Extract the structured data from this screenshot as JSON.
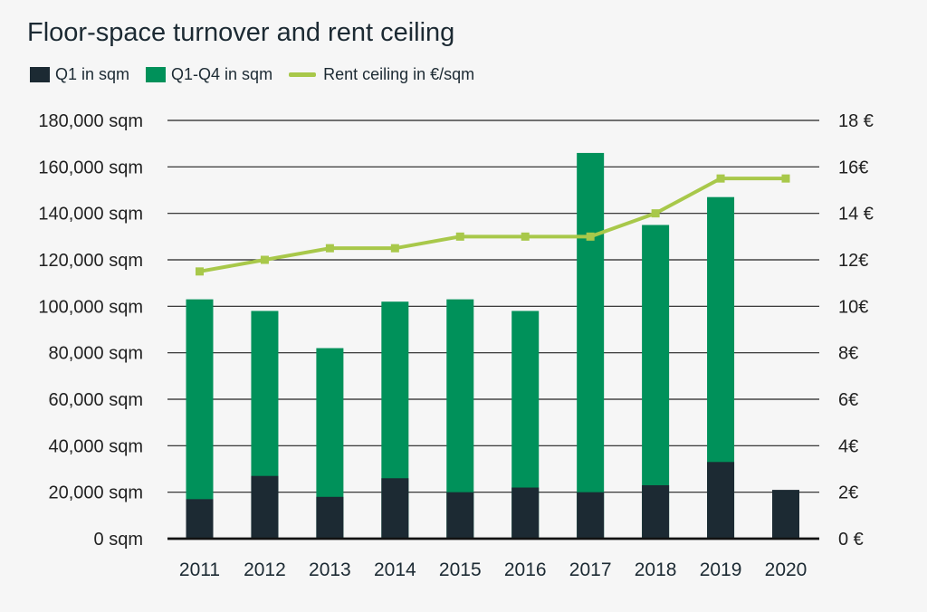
{
  "chart_data": {
    "type": "bar",
    "title": "Floor-space turnover and rent ceiling",
    "categories": [
      "2011",
      "2012",
      "2013",
      "2014",
      "2015",
      "2016",
      "2017",
      "2018",
      "2019",
      "2020"
    ],
    "series": [
      {
        "name": "Q1 in sqm",
        "kind": "bar",
        "color": "#1c2a33",
        "values": [
          17000,
          27000,
          18000,
          26000,
          20000,
          22000,
          20000,
          23000,
          33000,
          21000
        ]
      },
      {
        "name": "Q1-Q4 in sqm",
        "kind": "bar",
        "color": "#00915a",
        "values": [
          103000,
          98000,
          82000,
          102000,
          103000,
          98000,
          166000,
          135000,
          147000,
          null
        ]
      },
      {
        "name": "Rent ceiling in €/sqm",
        "kind": "line",
        "axis": "right",
        "color": "#a8c84a",
        "values": [
          11.5,
          12,
          12.5,
          12.5,
          13,
          13,
          13,
          14,
          15.5,
          15.5
        ]
      }
    ],
    "ylim": [
      0,
      180000
    ],
    "y2lim": [
      0,
      18
    ],
    "y_ticks": [
      "0 sqm",
      "20,000 sqm",
      "40,000 sqm",
      "60,000 sqm",
      "80,000 sqm",
      "100,000 sqm",
      "120,000 sqm",
      "140,000 sqm",
      "160,000 sqm",
      "180,000 sqm"
    ],
    "y2_ticks": [
      "0 €",
      "2€",
      "4€",
      "6€",
      "8€",
      "10€",
      "12€",
      "14 €",
      "16€",
      "18 €"
    ],
    "grid": true,
    "legend_position": "top-left"
  }
}
